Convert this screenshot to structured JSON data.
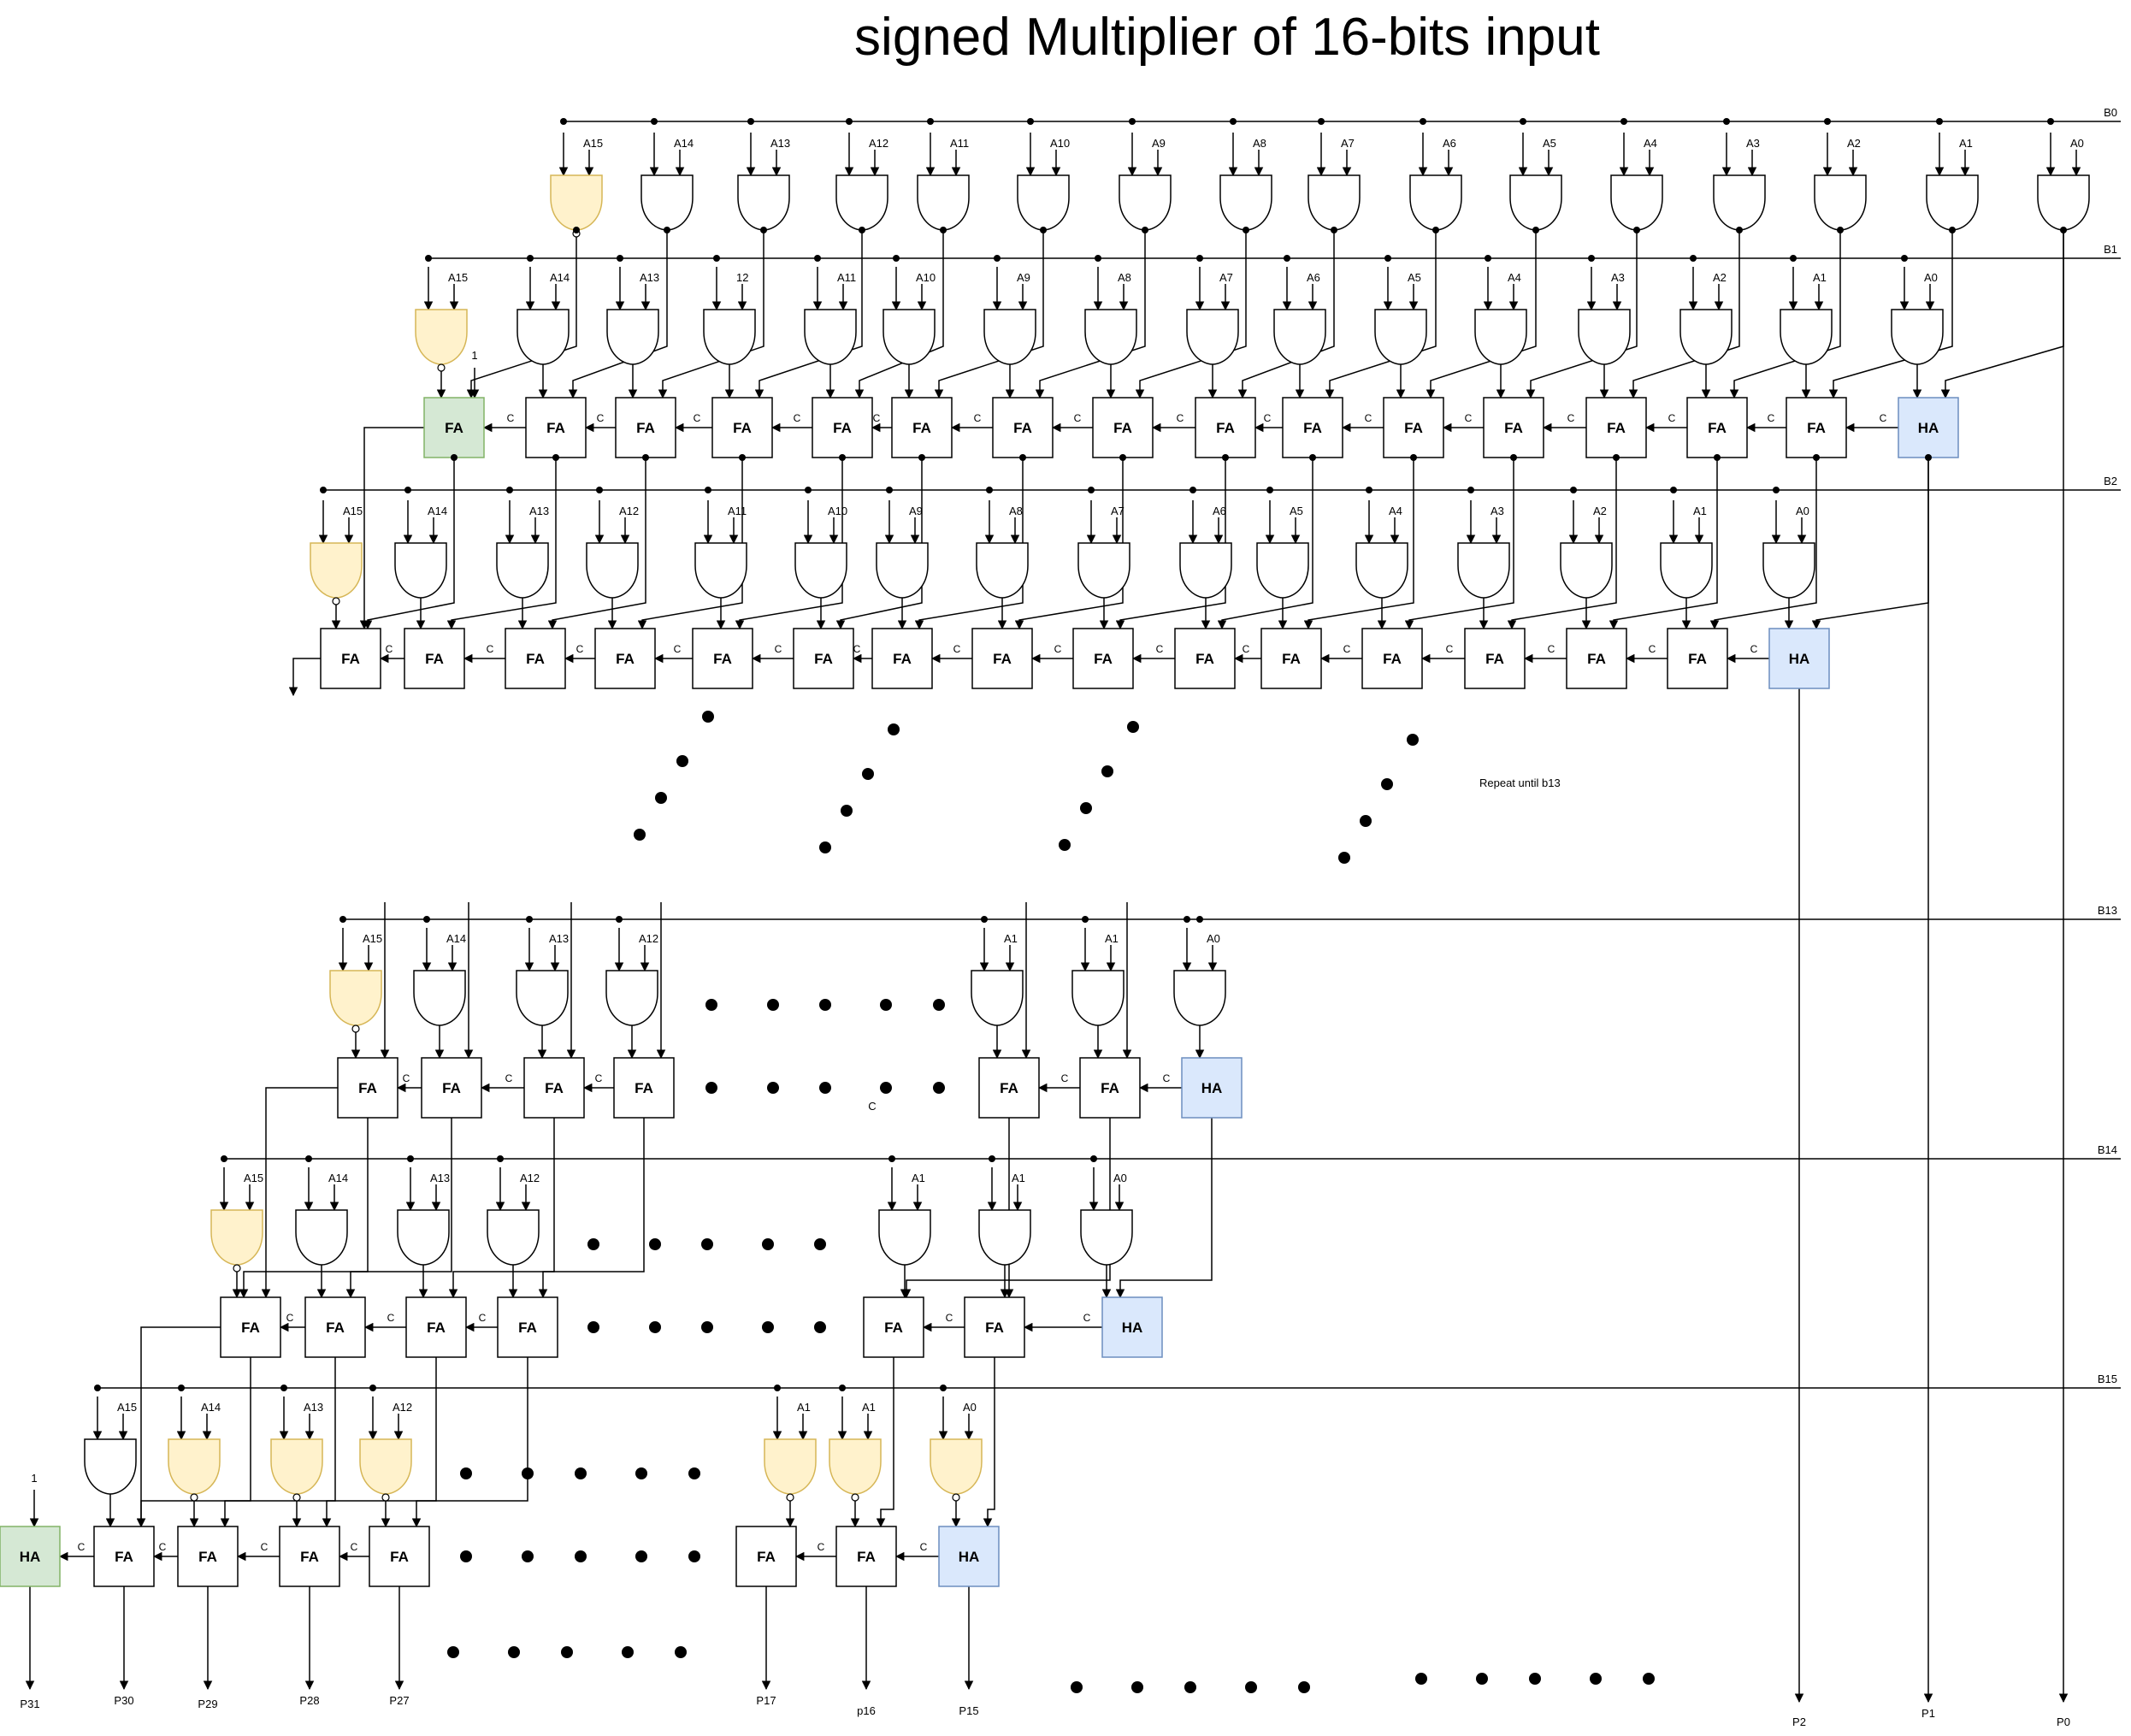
{
  "title": "signed Multiplier of 16-bits input",
  "note": "Repeat until b13",
  "colors": {
    "nand_fill": "#fff2cc",
    "nand_stroke": "#d6b656",
    "ha_fill": "#dae8fc",
    "ha_stroke": "#6c8ebf",
    "green_fill": "#d5e8d4",
    "green_stroke": "#82b366",
    "line": "#000000"
  },
  "cell_labels": {
    "fa": "FA",
    "ha": "HA",
    "carry": "C",
    "const_one": "1"
  },
  "rows": [
    {
      "b": "B0",
      "gate_labels": [
        "A15",
        "A14",
        "A13",
        "A12",
        "A11",
        "A10",
        "A9",
        "A8",
        "A7",
        "A6",
        "A5",
        "A4",
        "A3",
        "A2",
        "A1",
        "A0"
      ]
    },
    {
      "b": "B1",
      "gate_labels": [
        "A15",
        "A14",
        "A13",
        "12",
        "A11",
        "A10",
        "A9",
        "A8",
        "A7",
        "A6",
        "A5",
        "A4",
        "A3",
        "A2",
        "A1",
        "A0"
      ]
    },
    {
      "b": "B2",
      "gate_labels": [
        "A15",
        "A14",
        "A13",
        "A12",
        "A11",
        "A10",
        "A9",
        "A8",
        "A7",
        "A6",
        "A5",
        "A4",
        "A3",
        "A2",
        "A1",
        "A0"
      ]
    },
    {
      "b": "B13",
      "gate_labels": [
        "A15",
        "A14",
        "A13",
        "A12",
        "A1",
        "A1",
        "A0"
      ]
    },
    {
      "b": "B14",
      "gate_labels": [
        "A15",
        "A14",
        "A13",
        "A12",
        "A1",
        "A1",
        "A0"
      ]
    },
    {
      "b": "B15",
      "gate_labels": [
        "A15",
        "A14",
        "A13",
        "A12",
        "A1",
        "A1",
        "A0"
      ]
    }
  ],
  "outputs": [
    "P31",
    "P30",
    "P29",
    "P28",
    "P27",
    "P17",
    "p16",
    "P15",
    "P2",
    "P1",
    "P0"
  ]
}
